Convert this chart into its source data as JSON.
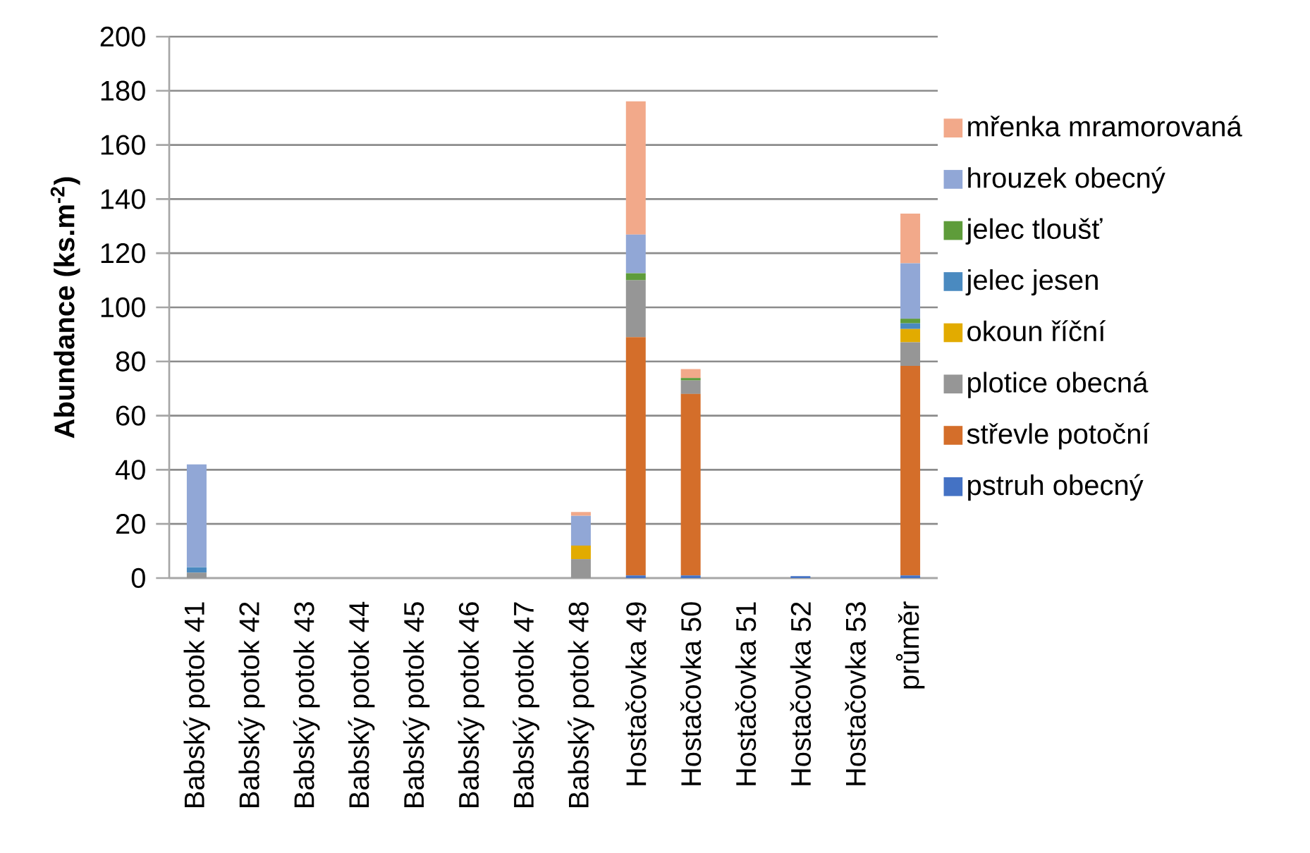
{
  "chart_data": {
    "type": "bar",
    "stacked": true,
    "ylabel": "Abundance (ks.m$^{-2}$)",
    "categories": [
      "Babský potok 41",
      "Babský potok 42",
      "Babský potok 43",
      "Babský potok 44",
      "Babský potok 45",
      "Babský potok 46",
      "Babský potok 47",
      "Babský potok 48",
      "Hostačovka 49",
      "Hostačovka 50",
      "Hostačovka 51",
      "Hostačovka 52",
      "Hostačovka 53",
      "průměr"
    ],
    "series": [
      {
        "name": "pstruh obecný",
        "color": "#4472c4",
        "values": [
          0,
          0,
          0,
          0,
          0,
          0,
          0,
          0,
          1,
          1,
          0,
          0.7,
          0,
          1
        ]
      },
      {
        "name": "střevle potoční",
        "color": "#d46e2a",
        "values": [
          0,
          0,
          0,
          0,
          0,
          0,
          0,
          0,
          88,
          67,
          0,
          0,
          0,
          77.4
        ]
      },
      {
        "name": "plotice obecná",
        "color": "#969696",
        "values": [
          2,
          0,
          0,
          0,
          0,
          0,
          0,
          7,
          21,
          5,
          0,
          0,
          0,
          8.7
        ]
      },
      {
        "name": "okoun říční",
        "color": "#e2ab00",
        "values": [
          0,
          0,
          0,
          0,
          0,
          0,
          0,
          5,
          0,
          0,
          0,
          0,
          0,
          4.9
        ]
      },
      {
        "name": "jelec jesen",
        "color": "#4a8ac0",
        "values": [
          2,
          0,
          0,
          0,
          0,
          0,
          0,
          0,
          0,
          0,
          0,
          0,
          0,
          2.1
        ]
      },
      {
        "name": "jelec tloušť",
        "color": "#5e9c3a",
        "values": [
          0,
          0,
          0,
          0,
          0,
          0,
          0,
          0,
          2.6,
          0.9,
          0,
          0,
          0,
          1.7
        ]
      },
      {
        "name": "hrouzek obecný",
        "color": "#91a7d6",
        "values": [
          38,
          0,
          0,
          0,
          0,
          0,
          0,
          11,
          14.3,
          0,
          0,
          0,
          0,
          20.5
        ]
      },
      {
        "name": "mřenka mramorovaná",
        "color": "#f2a98a",
        "values": [
          0,
          0,
          0,
          0,
          0,
          0,
          0,
          1.4,
          49.2,
          3.3,
          0,
          0,
          0,
          18.3
        ]
      }
    ],
    "ylim": [
      0,
      200
    ],
    "yticks": [
      0,
      20,
      40,
      60,
      80,
      100,
      120,
      140,
      160,
      180,
      200
    ],
    "grid": "y",
    "legend": "right"
  }
}
